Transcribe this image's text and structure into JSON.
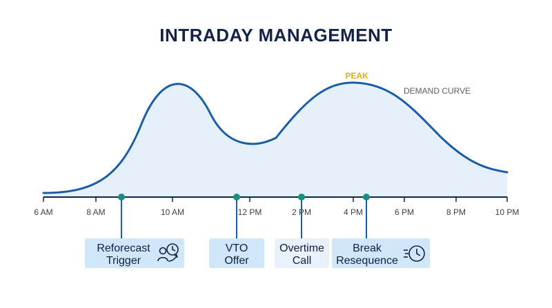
{
  "title": "INTRADAY MANAGEMENT",
  "annotations": {
    "peak": "PEAK",
    "demand_curve": "DEMAND CURVE"
  },
  "colors": {
    "curve": "#1a5ca8",
    "fill": "#e6f0fa",
    "axis": "#132347",
    "marker": "#1a8f7f",
    "peak": "#e0b20b",
    "card": "#cfe7f8",
    "card_light": "#e9f2fb"
  },
  "axis": {
    "ticks": [
      "6 AM",
      "8 AM",
      "10 AM",
      "12 PM",
      "2 PM",
      "4 PM",
      "6 PM",
      "8 PM",
      "10 PM"
    ]
  },
  "events": [
    {
      "time": "9 AM",
      "line1": "Reforecast",
      "line2": "Trigger",
      "icon": "person-clock-icon"
    },
    {
      "time": "12 PM",
      "line1": "VTO",
      "line2": "Offer",
      "icon": ""
    },
    {
      "time": "2 PM",
      "line1": "Overtime",
      "line2": "Call",
      "icon": ""
    },
    {
      "time": "4:30 PM",
      "line1": "Break",
      "line2": "Resequence",
      "icon": "fast-clock-icon"
    }
  ]
}
